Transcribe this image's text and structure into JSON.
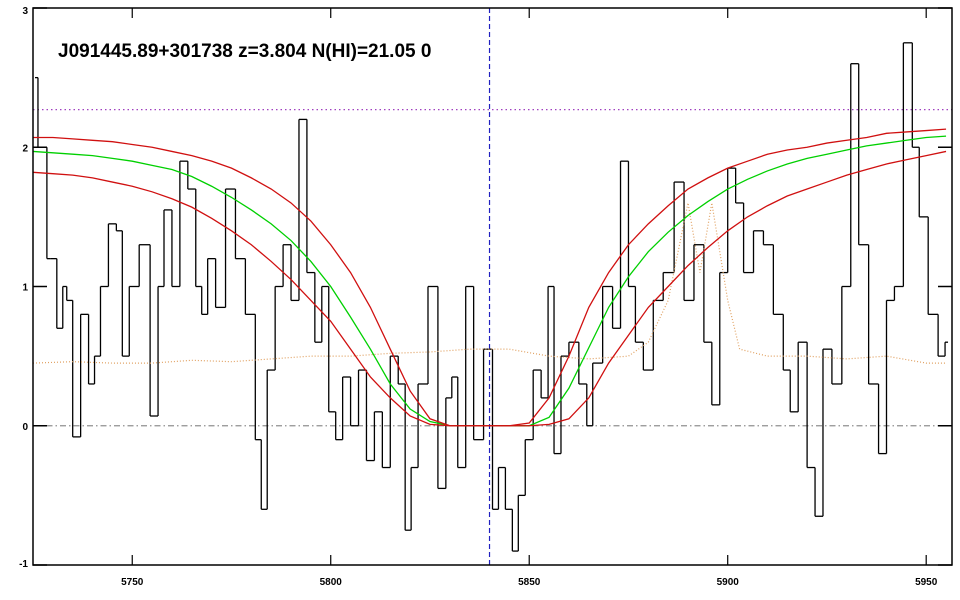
{
  "chart_data": {
    "type": "line",
    "title": "J091445.89+301738 z=3.804 N(HI)=21.05 0",
    "xlim": [
      5725,
      5956.5
    ],
    "ylim": [
      -1,
      3
    ],
    "xticks": [
      5750,
      5800,
      5850,
      5900,
      5950
    ],
    "yticks": [
      -1,
      0,
      1,
      2,
      3
    ],
    "hlines": [
      {
        "value": 2.27,
        "color": "#a040c0"
      },
      {
        "value": 0,
        "color": "#909090"
      }
    ],
    "vlines": [
      {
        "value": 5840,
        "color": "#2020c0"
      }
    ],
    "series": [
      {
        "color": "#000000",
        "step": true,
        "x": [
          5725.5,
          5727,
          5728,
          5729,
          5730,
          5732,
          5733,
          5734,
          5736,
          5738,
          5740,
          5741,
          5743,
          5745,
          5747,
          5748,
          5750.5,
          5753,
          5756,
          5757,
          5759,
          5761,
          5763,
          5765,
          5767,
          5768,
          5770,
          5772,
          5775,
          5777,
          5780,
          5782,
          5783,
          5785,
          5787,
          5789,
          5791,
          5793,
          5795,
          5797,
          5798.5,
          5800.5,
          5802,
          5804,
          5806,
          5808,
          5810,
          5812,
          5814,
          5816,
          5818,
          5819.5,
          5821,
          5823,
          5826,
          5828,
          5830,
          5831,
          5833,
          5835,
          5837,
          5840,
          5841.5,
          5843,
          5845,
          5846.5,
          5848,
          5850,
          5852,
          5854,
          5855.5,
          5857,
          5859,
          5861,
          5864,
          5865,
          5867,
          5870,
          5872,
          5874,
          5876,
          5877.5,
          5880,
          5882.5,
          5885,
          5888,
          5890,
          5893,
          5895,
          5897,
          5899,
          5901,
          5903,
          5905,
          5908,
          5910,
          5913,
          5915,
          5916.5,
          5919,
          5921,
          5923,
          5925,
          5927.5,
          5930,
          5932,
          5934,
          5937,
          5939,
          5941,
          5943,
          5945.5,
          5947.5,
          5949,
          5952,
          5954,
          5955.5
        ],
        "values": [
          2.5,
          2.0,
          2.0,
          1.2,
          1.2,
          0.7,
          1.0,
          0.9,
          -0.08,
          0.8,
          0.3,
          0.5,
          1.0,
          1.45,
          1.4,
          0.5,
          1.0,
          1.3,
          0.07,
          1.0,
          1.55,
          1.0,
          1.9,
          1.7,
          1.0,
          0.8,
          1.2,
          0.85,
          1.7,
          1.2,
          0.8,
          -0.1,
          -0.6,
          0.4,
          1.0,
          1.3,
          0.9,
          2.2,
          1.1,
          0.6,
          1.0,
          0.1,
          -0.1,
          0.35,
          0.0,
          0.4,
          -0.25,
          0.1,
          -0.3,
          0.5,
          0.3,
          -0.75,
          -0.3,
          0.3,
          1.0,
          -0.45,
          0.2,
          0.35,
          -0.3,
          1.0,
          -0.1,
          0.55,
          -0.6,
          -0.3,
          -0.6,
          -0.9,
          -0.5,
          -0.1,
          0.4,
          0.2,
          1.0,
          -0.2,
          0.5,
          0.6,
          0.3,
          0.0,
          0.45,
          1.0,
          0.7,
          1.9,
          1.0,
          0.6,
          0.4,
          0.9,
          1.1,
          1.75,
          0.9,
          1.3,
          0.6,
          0.15,
          1.1,
          1.85,
          1.6,
          1.1,
          1.4,
          1.3,
          0.8,
          0.4,
          0.1,
          0.6,
          -0.3,
          -0.65,
          0.55,
          0.3,
          1.0,
          2.6,
          1.3,
          0.3,
          -0.2,
          0.9,
          1.0,
          2.75,
          2.0,
          1.5,
          0.8,
          0.5,
          0.6
        ]
      },
      {
        "color": "#e0a060",
        "dotted": true,
        "x": [
          5725,
          5735,
          5745,
          5755,
          5765,
          5775,
          5785,
          5795,
          5805,
          5815,
          5825,
          5835,
          5845,
          5855,
          5865,
          5875,
          5880,
          5885,
          5890,
          5893,
          5896,
          5900,
          5903,
          5910,
          5920,
          5930,
          5940,
          5950,
          5955
        ],
        "values": [
          0.45,
          0.46,
          0.45,
          0.45,
          0.47,
          0.46,
          0.48,
          0.5,
          0.5,
          0.52,
          0.53,
          0.55,
          0.55,
          0.5,
          0.48,
          0.5,
          0.6,
          0.9,
          1.6,
          1.1,
          1.6,
          0.9,
          0.55,
          0.5,
          0.5,
          0.48,
          0.5,
          0.45,
          0.45
        ]
      },
      {
        "color": "#00d000",
        "x": [
          5725,
          5730,
          5735,
          5740,
          5745,
          5750,
          5755,
          5760,
          5765,
          5770,
          5775,
          5780,
          5785,
          5790,
          5795,
          5800,
          5805,
          5810,
          5815,
          5820,
          5825,
          5830,
          5835,
          5840,
          5845,
          5850,
          5855,
          5860,
          5865,
          5870,
          5875,
          5880,
          5885,
          5890,
          5895,
          5900,
          5905,
          5910,
          5915,
          5920,
          5925,
          5930,
          5935,
          5940,
          5945,
          5950,
          5955
        ],
        "values": [
          1.97,
          1.96,
          1.95,
          1.94,
          1.92,
          1.9,
          1.87,
          1.84,
          1.79,
          1.72,
          1.64,
          1.55,
          1.45,
          1.33,
          1.18,
          1.0,
          0.78,
          0.55,
          0.3,
          0.12,
          0.03,
          0,
          0,
          0,
          0,
          0,
          0.06,
          0.27,
          0.56,
          0.85,
          1.07,
          1.25,
          1.39,
          1.51,
          1.61,
          1.7,
          1.77,
          1.83,
          1.88,
          1.92,
          1.95,
          1.98,
          2.01,
          2.03,
          2.05,
          2.07,
          2.08
        ]
      },
      {
        "color": "#d01010",
        "x": [
          5725,
          5730,
          5735,
          5740,
          5745,
          5750,
          5755,
          5760,
          5765,
          5770,
          5775,
          5780,
          5785,
          5790,
          5795,
          5800,
          5805,
          5810,
          5815,
          5820,
          5825,
          5830,
          5835,
          5840,
          5845,
          5850,
          5855,
          5860,
          5865,
          5870,
          5875,
          5880,
          5885,
          5890,
          5895,
          5900,
          5905,
          5910,
          5915,
          5920,
          5925,
          5930,
          5935,
          5940,
          5945,
          5950,
          5955
        ],
        "values": [
          2.07,
          2.07,
          2.06,
          2.05,
          2.04,
          2.02,
          2.0,
          1.97,
          1.94,
          1.9,
          1.85,
          1.78,
          1.7,
          1.6,
          1.47,
          1.3,
          1.1,
          0.85,
          0.55,
          0.25,
          0.05,
          0,
          0,
          0,
          0,
          0.02,
          0.2,
          0.5,
          0.85,
          1.1,
          1.3,
          1.45,
          1.58,
          1.7,
          1.78,
          1.85,
          1.9,
          1.95,
          1.98,
          2.0,
          2.03,
          2.05,
          2.07,
          2.1,
          2.11,
          2.12,
          2.13
        ]
      },
      {
        "color": "#d01010",
        "x": [
          5725,
          5730,
          5735,
          5740,
          5745,
          5750,
          5755,
          5760,
          5765,
          5770,
          5775,
          5780,
          5785,
          5790,
          5795,
          5800,
          5805,
          5810,
          5815,
          5820,
          5825,
          5830,
          5835,
          5840,
          5845,
          5850,
          5855,
          5860,
          5865,
          5870,
          5875,
          5880,
          5885,
          5890,
          5895,
          5900,
          5905,
          5910,
          5915,
          5920,
          5925,
          5930,
          5935,
          5940,
          5945,
          5950,
          5955
        ],
        "values": [
          1.82,
          1.81,
          1.8,
          1.78,
          1.75,
          1.72,
          1.68,
          1.63,
          1.57,
          1.49,
          1.4,
          1.3,
          1.18,
          1.05,
          0.9,
          0.75,
          0.55,
          0.35,
          0.2,
          0.07,
          0.01,
          0,
          0,
          0,
          0,
          0,
          0.01,
          0.05,
          0.2,
          0.45,
          0.65,
          0.85,
          1.0,
          1.15,
          1.28,
          1.4,
          1.5,
          1.58,
          1.65,
          1.7,
          1.75,
          1.8,
          1.84,
          1.88,
          1.91,
          1.94,
          1.97
        ]
      }
    ]
  }
}
